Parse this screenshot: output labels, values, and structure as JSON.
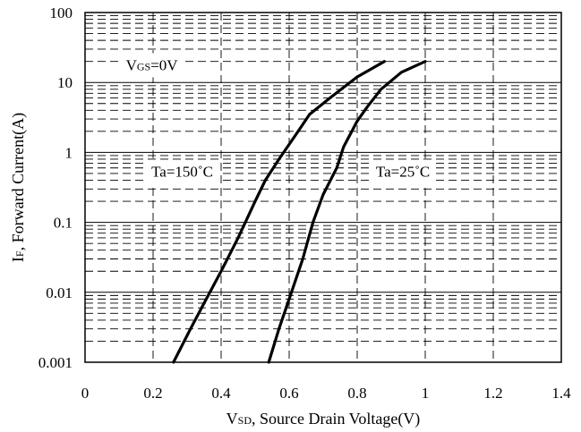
{
  "chart_data": {
    "type": "line",
    "title": "",
    "x_axis": {
      "label_main": "V",
      "label_sub": "SD",
      "label_rest": ", Source Drain Voltage(V)",
      "range": [
        0,
        1.4
      ],
      "ticks": [
        0,
        0.2,
        0.4,
        0.6,
        0.8,
        1.0,
        1.2,
        1.4
      ],
      "tick_labels": [
        "0",
        "0.2",
        "0.4",
        "0.6",
        "0.8",
        "1",
        "1.2",
        "1.4"
      ],
      "grid_major": [
        0.2,
        0.4,
        0.6,
        0.8,
        1.0,
        1.2
      ]
    },
    "y_axis": {
      "label_main": "I",
      "label_sub": "F",
      "label_rest": ", Forward Current(A)",
      "scale": "log",
      "range": [
        0.001,
        100
      ],
      "ticks": [
        0.001,
        0.01,
        0.1,
        1,
        10,
        100
      ],
      "tick_labels": [
        "0.001",
        "0.01",
        "0.1",
        "1",
        "10",
        "100"
      ]
    },
    "grid": true,
    "annotations": [
      {
        "id": "vgs",
        "main": "V",
        "sub": "GS",
        "rest": "=0V",
        "x": 0.12,
        "y": 15
      },
      {
        "id": "ta150",
        "main": "Ta=150",
        "sub": "",
        "rest": "˚C",
        "x": 0.195,
        "y": 0.45
      },
      {
        "id": "ta25",
        "main": "Ta=25",
        "sub": "",
        "rest": "˚C",
        "x": 0.855,
        "y": 0.45
      }
    ],
    "series": [
      {
        "name": "Ta=150˚C",
        "points": [
          [
            0.26,
            0.001
          ],
          [
            0.31,
            0.003
          ],
          [
            0.35,
            0.007
          ],
          [
            0.4,
            0.02
          ],
          [
            0.45,
            0.06
          ],
          [
            0.5,
            0.2
          ],
          [
            0.53,
            0.4
          ],
          [
            0.57,
            0.8
          ],
          [
            0.62,
            1.8
          ],
          [
            0.66,
            3.5
          ],
          [
            0.72,
            6
          ],
          [
            0.8,
            12
          ],
          [
            0.88,
            20
          ]
        ]
      },
      {
        "name": "Ta=25˚C",
        "points": [
          [
            0.54,
            0.001
          ],
          [
            0.57,
            0.003
          ],
          [
            0.6,
            0.008
          ],
          [
            0.64,
            0.03
          ],
          [
            0.67,
            0.1
          ],
          [
            0.7,
            0.25
          ],
          [
            0.74,
            0.6
          ],
          [
            0.76,
            1.2
          ],
          [
            0.8,
            2.8
          ],
          [
            0.83,
            4.5
          ],
          [
            0.87,
            8
          ],
          [
            0.93,
            14
          ],
          [
            1.0,
            20
          ]
        ]
      }
    ]
  }
}
